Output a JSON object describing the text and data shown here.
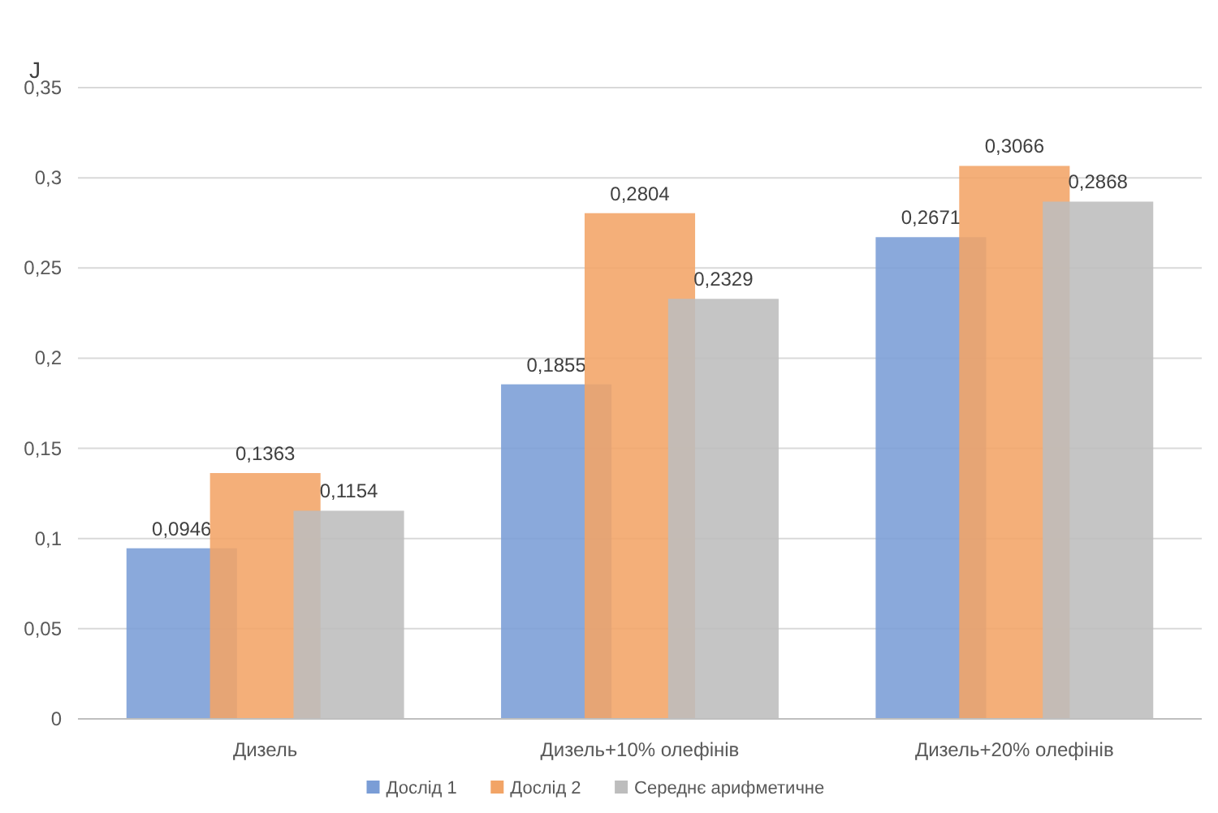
{
  "chart_data": {
    "type": "bar",
    "ylabel": "J",
    "categories": [
      "Дизель",
      "Дизель+10% олефінів",
      "Дизель+20% олефінів"
    ],
    "series": [
      {
        "name": "Дослід 1",
        "color": "#7a9dd6",
        "values": [
          0.0946,
          0.1855,
          0.2671
        ],
        "value_labels": [
          "0,0946",
          "0,1855",
          "0,2671"
        ]
      },
      {
        "name": "Дослід 2",
        "color": "#f2a466",
        "values": [
          0.1363,
          0.2804,
          0.3066
        ],
        "value_labels": [
          "0,1363",
          "0,2804",
          "0,3066"
        ]
      },
      {
        "name": "Середнє арифметичне",
        "color": "#bdbdbd",
        "values": [
          0.1154,
          0.2329,
          0.2868
        ],
        "value_labels": [
          "0,1154",
          "0,2329",
          "0,2868"
        ]
      }
    ],
    "ylim": [
      0,
      0.35
    ],
    "yticks": [
      {
        "value": 0,
        "label": "0"
      },
      {
        "value": 0.05,
        "label": "0,05"
      },
      {
        "value": 0.1,
        "label": "0,1"
      },
      {
        "value": 0.15,
        "label": "0,15"
      },
      {
        "value": 0.2,
        "label": "0,2"
      },
      {
        "value": 0.25,
        "label": "0,25"
      },
      {
        "value": 0.3,
        "label": "0,3"
      },
      {
        "value": 0.35,
        "label": "0,35"
      }
    ],
    "grid": "y",
    "legend": "bottom"
  }
}
